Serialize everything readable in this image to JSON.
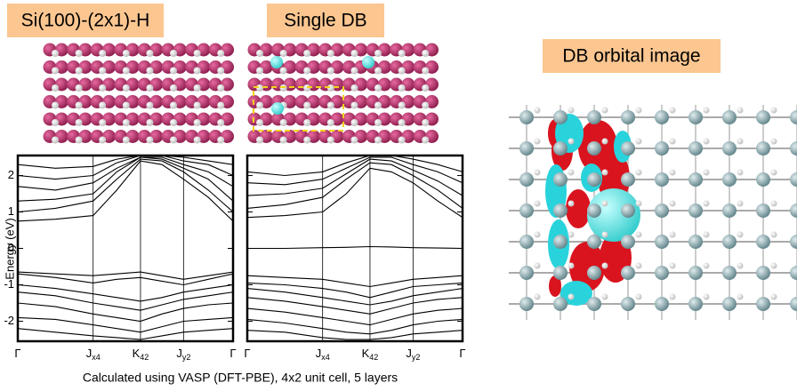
{
  "figure": {
    "caption": "Calculated using VASP (DFT-PBE), 4x2 unit cell, 5 layers",
    "orbital_label": "DB orbital image"
  },
  "chart_data": [
    {
      "type": "line",
      "title": "Si(100)-(2x1)-H",
      "ylabel": "Energy (eV)",
      "x": [
        0,
        0.175,
        0.35,
        0.46,
        0.57,
        0.67,
        0.77,
        0.885,
        1
      ],
      "xlim": [
        0,
        1
      ],
      "xticks": [
        {
          "value": 0,
          "label": "Γ"
        },
        {
          "value": 0.35,
          "label": "J",
          "sub": "x4"
        },
        {
          "value": 0.57,
          "label": "K",
          "sub": "42"
        },
        {
          "value": 0.77,
          "label": "J",
          "sub": "y2"
        },
        {
          "value": 1,
          "label": "Γ"
        }
      ],
      "ylim": [
        -2.55,
        2.55
      ],
      "yticks": [
        -2,
        -1,
        0,
        1,
        2
      ],
      "series": [
        {
          "color": "#000",
          "values": [
            0.75,
            0.8,
            0.9,
            1.6,
            2.4,
            2.3,
            1.9,
            1.4,
            0.75
          ]
        },
        {
          "color": "#000",
          "values": [
            1.0,
            1.1,
            1.3,
            1.9,
            2.45,
            2.4,
            2.1,
            1.6,
            1.0
          ]
        },
        {
          "color": "#000",
          "values": [
            1.3,
            1.35,
            1.5,
            2.1,
            2.5,
            2.45,
            2.2,
            1.9,
            1.3
          ]
        },
        {
          "color": "#000",
          "values": [
            1.7,
            1.6,
            1.8,
            2.2,
            2.5,
            2.5,
            2.3,
            2.1,
            1.7
          ]
        },
        {
          "color": "#000",
          "values": [
            2.0,
            1.9,
            2.0,
            2.35,
            2.55,
            2.55,
            2.4,
            2.3,
            2.0
          ]
        },
        {
          "color": "#000",
          "values": [
            2.3,
            2.2,
            2.25,
            2.45,
            2.55,
            2.55,
            2.5,
            2.4,
            2.3
          ]
        },
        {
          "color": "#000",
          "values": [
            -0.65,
            -0.7,
            -0.75,
            -0.7,
            -0.65,
            -0.75,
            -0.85,
            -0.75,
            -0.65
          ]
        },
        {
          "color": "#000",
          "values": [
            -0.7,
            -0.8,
            -0.95,
            -0.85,
            -0.8,
            -0.9,
            -1.0,
            -0.85,
            -0.7
          ]
        },
        {
          "color": "#000",
          "values": [
            -1.0,
            -1.1,
            -1.25,
            -1.35,
            -1.45,
            -1.35,
            -1.2,
            -1.1,
            -1.0
          ]
        },
        {
          "color": "#000",
          "values": [
            -1.2,
            -1.3,
            -1.5,
            -1.6,
            -1.7,
            -1.55,
            -1.4,
            -1.3,
            -1.2
          ]
        },
        {
          "color": "#000",
          "values": [
            -1.5,
            -1.6,
            -1.8,
            -1.9,
            -2.0,
            -1.8,
            -1.65,
            -1.55,
            -1.5
          ]
        },
        {
          "color": "#000",
          "values": [
            -1.9,
            -1.95,
            -2.1,
            -2.2,
            -2.3,
            -2.15,
            -2.0,
            -1.95,
            -1.9
          ]
        },
        {
          "color": "#000",
          "values": [
            -2.2,
            -2.3,
            -2.4,
            -2.45,
            -2.5,
            -2.4,
            -2.3,
            -2.25,
            -2.2
          ]
        }
      ]
    },
    {
      "type": "line",
      "title": "Single DB",
      "x": [
        0,
        0.175,
        0.35,
        0.46,
        0.57,
        0.67,
        0.77,
        0.885,
        1
      ],
      "xlim": [
        0,
        1
      ],
      "xticks": [
        {
          "value": 0,
          "label": "Γ"
        },
        {
          "value": 0.35,
          "label": "J",
          "sub": "x4"
        },
        {
          "value": 0.57,
          "label": "K",
          "sub": "42"
        },
        {
          "value": 0.77,
          "label": "J",
          "sub": "y2"
        },
        {
          "value": 1,
          "label": "Γ"
        }
      ],
      "ylim": [
        -2.55,
        2.55
      ],
      "yticks": [
        -2,
        -1,
        0,
        1,
        2
      ],
      "series": [
        {
          "color": "#000",
          "values": [
            0.0,
            0.0,
            0.02,
            0.03,
            0.05,
            0.04,
            0.02,
            0.01,
            0.0
          ]
        },
        {
          "color": "#000",
          "values": [
            0.85,
            0.9,
            1.0,
            1.5,
            2.2,
            2.1,
            1.8,
            1.3,
            0.85
          ]
        },
        {
          "color": "#000",
          "values": [
            1.1,
            1.2,
            1.4,
            1.9,
            2.35,
            2.3,
            2.0,
            1.6,
            1.1
          ]
        },
        {
          "color": "#000",
          "values": [
            1.45,
            1.5,
            1.65,
            2.05,
            2.45,
            2.4,
            2.15,
            1.85,
            1.45
          ]
        },
        {
          "color": "#000",
          "values": [
            1.8,
            1.75,
            1.9,
            2.2,
            2.5,
            2.5,
            2.3,
            2.1,
            1.8
          ]
        },
        {
          "color": "#000",
          "values": [
            2.1,
            2.0,
            2.1,
            2.35,
            2.55,
            2.55,
            2.45,
            2.3,
            2.1
          ]
        },
        {
          "color": "#000",
          "values": [
            -0.75,
            -0.8,
            -0.85,
            -0.95,
            -1.05,
            -0.95,
            -0.85,
            -0.8,
            -0.75
          ]
        },
        {
          "color": "#000",
          "values": [
            -0.95,
            -1.0,
            -1.1,
            -1.2,
            -1.35,
            -1.2,
            -1.05,
            -1.0,
            -0.95
          ]
        },
        {
          "color": "#000",
          "values": [
            -1.1,
            -1.2,
            -1.35,
            -1.45,
            -1.55,
            -1.45,
            -1.3,
            -1.2,
            -1.1
          ]
        },
        {
          "color": "#000",
          "values": [
            -1.35,
            -1.45,
            -1.6,
            -1.7,
            -1.8,
            -1.65,
            -1.5,
            -1.4,
            -1.35
          ]
        },
        {
          "color": "#000",
          "values": [
            -1.65,
            -1.75,
            -1.9,
            -2.0,
            -2.1,
            -1.95,
            -1.8,
            -1.7,
            -1.65
          ]
        },
        {
          "color": "#000",
          "values": [
            -1.95,
            -2.05,
            -2.2,
            -2.3,
            -2.35,
            -2.25,
            -2.1,
            -2.0,
            -1.95
          ]
        },
        {
          "color": "#000",
          "values": [
            -2.25,
            -2.3,
            -2.45,
            -2.5,
            -2.5,
            -2.45,
            -2.35,
            -2.3,
            -2.25
          ]
        }
      ]
    }
  ]
}
